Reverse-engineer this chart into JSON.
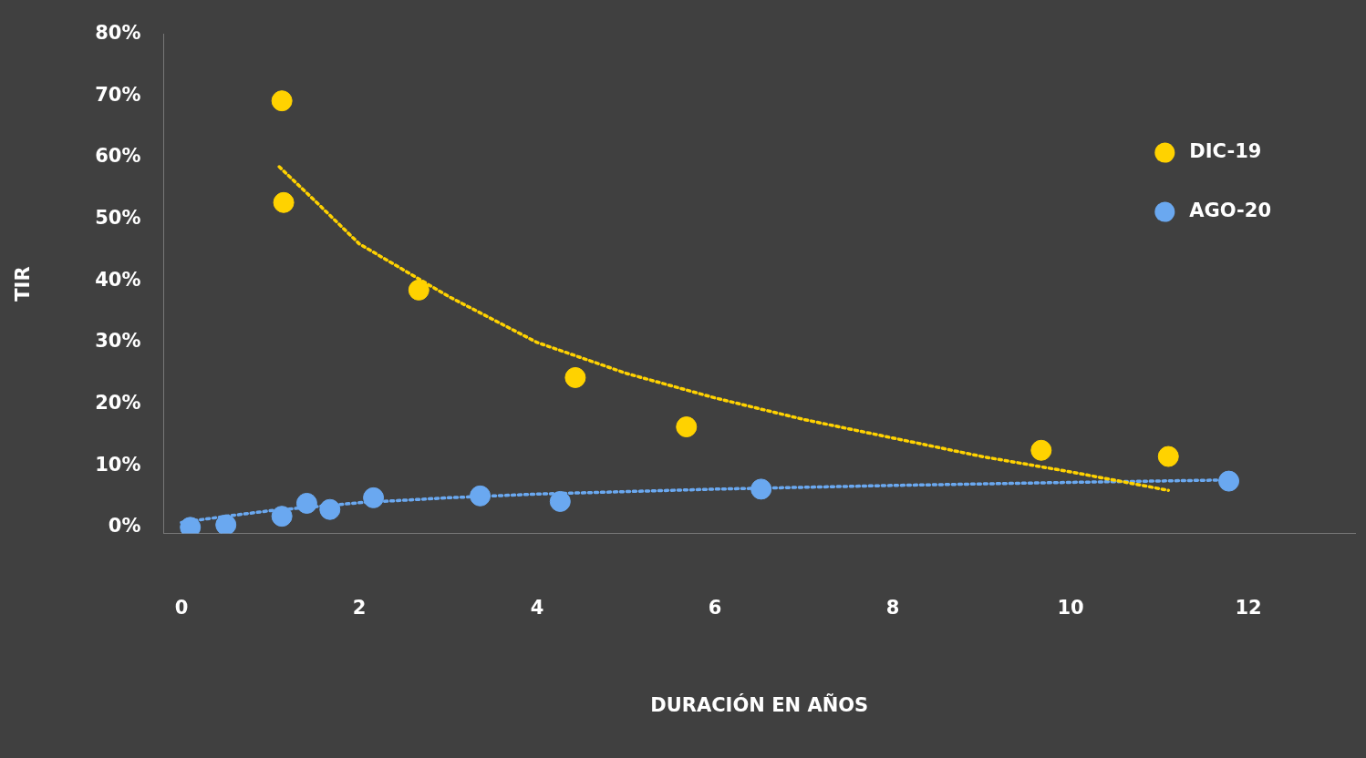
{
  "chart_data": {
    "type": "scatter",
    "xlabel": "DURACIÓN EN AÑOS",
    "ylabel": "TIR",
    "xlim": [
      -0.2,
      13.2
    ],
    "xticks": [
      0,
      2,
      4,
      6,
      8,
      10,
      12
    ],
    "ylim": [
      -1,
      80
    ],
    "yticks": [
      {
        "value": 0,
        "label": "0%"
      },
      {
        "value": 10,
        "label": "10%"
      },
      {
        "value": 20,
        "label": "20%"
      },
      {
        "value": 30,
        "label": "30%"
      },
      {
        "value": 40,
        "label": "40%"
      },
      {
        "value": 50,
        "label": "50%"
      },
      {
        "value": 60,
        "label": "60%"
      },
      {
        "value": 70,
        "label": "70%"
      },
      {
        "value": 80,
        "label": "80%"
      }
    ],
    "grid": false,
    "legend": "top right",
    "marker": "circle",
    "series": [
      {
        "name": "DIC-19",
        "color": "#ffd200",
        "x": [
          1.13,
          1.15,
          2.67,
          4.43,
          5.68,
          9.67,
          11.1
        ],
        "values": [
          69.2,
          52.7,
          38.5,
          24.3,
          16.3,
          12.5,
          11.5
        ]
      },
      {
        "name": "AGO-20",
        "color": "#6aa8f0",
        "x": [
          0.1,
          0.5,
          1.13,
          1.41,
          1.67,
          2.16,
          3.36,
          4.26,
          6.52,
          11.78
        ],
        "values": [
          0,
          0.4,
          1.8,
          3.9,
          2.9,
          4.8,
          5.1,
          4.2,
          6.2,
          7.5
        ]
      },
      {
        "type": "line",
        "color": "#ffd200",
        "line_style": "dotted",
        "marker": "none",
        "x": [
          1.1,
          1.5,
          2,
          3,
          4,
          5,
          6,
          7,
          8,
          9,
          10,
          11.1
        ],
        "values": [
          58.5,
          53,
          46,
          37.5,
          30,
          25,
          21,
          17.5,
          14.5,
          11.5,
          9,
          6
        ]
      },
      {
        "type": "line",
        "color": "#6aa8f0",
        "line_style": "dotted",
        "marker": "none",
        "x": [
          0,
          0.5,
          1,
          2,
          3,
          4,
          6,
          8,
          10,
          11.8
        ],
        "values": [
          0.8,
          1.8,
          2.7,
          4,
          4.8,
          5.4,
          6.2,
          6.8,
          7.3,
          7.7
        ]
      }
    ]
  }
}
